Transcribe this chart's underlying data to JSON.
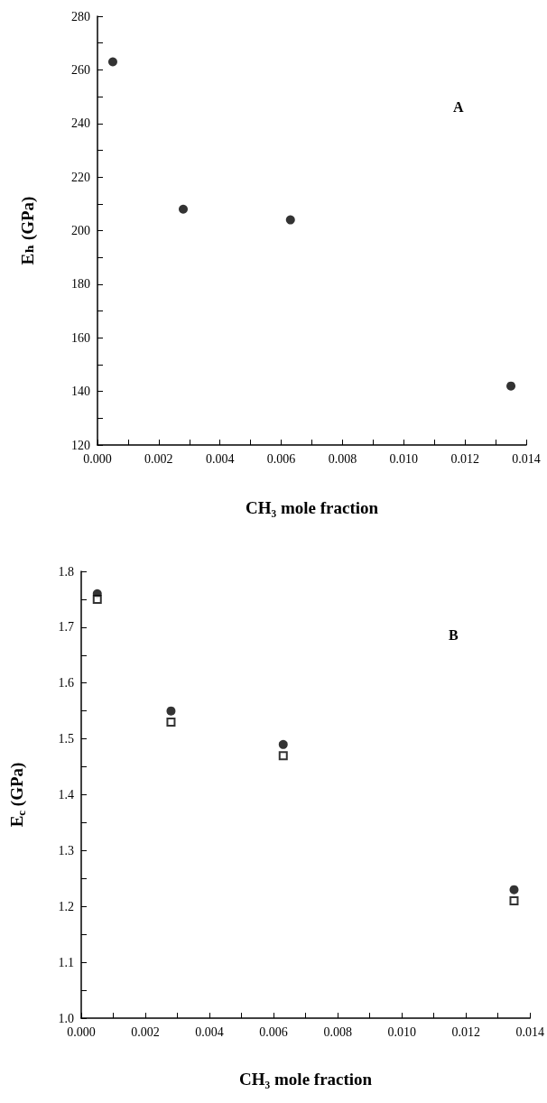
{
  "chart_data": [
    {
      "type": "scatter",
      "xlabel": "CH₃ mole fraction",
      "ylabel": "Eₕ (GPa)",
      "annotations": [
        "A"
      ],
      "x": [
        0.0005,
        0.0028,
        0.0063,
        0.0135
      ],
      "series": [
        {
          "color": "#000000",
          "marker": "circle",
          "values": [
            263,
            208,
            204,
            142
          ]
        }
      ],
      "xlim": [
        0,
        0.014
      ],
      "ylim": [
        120,
        280
      ],
      "xticks": [
        {
          "value": 0,
          "label": "0.000"
        },
        {
          "value": 0.001,
          "label": null
        },
        {
          "value": 0.002,
          "label": "0.002"
        },
        {
          "value": 0.003,
          "label": null
        },
        {
          "value": 0.004,
          "label": "0.004"
        },
        {
          "value": 0.005,
          "label": null
        },
        {
          "value": 0.006,
          "label": "0.006"
        },
        {
          "value": 0.007,
          "label": null
        },
        {
          "value": 0.008,
          "label": "0.008"
        },
        {
          "value": 0.009,
          "label": null
        },
        {
          "value": 0.01,
          "label": "0.010"
        },
        {
          "value": 0.011,
          "label": null
        },
        {
          "value": 0.012,
          "label": "0.012"
        },
        {
          "value": 0.013,
          "label": null
        },
        {
          "value": 0.014,
          "label": "0.014"
        }
      ],
      "yticks": [
        120,
        {
          "value": 130,
          "label": null
        },
        140,
        {
          "value": 150,
          "label": null
        },
        160,
        {
          "value": 170,
          "label": null
        },
        180,
        {
          "value": 190,
          "label": null
        },
        200,
        {
          "value": 210,
          "label": null
        },
        220,
        {
          "value": 230,
          "label": null
        },
        240,
        {
          "value": 250,
          "label": null
        },
        260,
        {
          "value": 270,
          "label": null
        },
        280
      ],
      "grid": false
    },
    {
      "type": "scatter",
      "xlabel": "CH₃ mole fraction",
      "ylabel": "E$_{c}$ (GPa)",
      "annotations": [
        "B"
      ],
      "x": [
        0.0005,
        0.0028,
        0.0063,
        0.0135
      ],
      "series": [
        {
          "color": "#000000",
          "marker": "circle",
          "values": [
            1.76,
            1.55,
            1.49,
            1.23
          ]
        },
        {
          "color": "#000000",
          "marker": "square",
          "values": [
            1.75,
            1.53,
            1.47,
            1.21
          ]
        }
      ],
      "xlim": [
        0,
        0.014
      ],
      "ylim": [
        1.0,
        1.8
      ],
      "xticks": [
        {
          "value": 0,
          "label": "0.000"
        },
        {
          "value": 0.001,
          "label": null
        },
        {
          "value": 0.002,
          "label": "0.002"
        },
        {
          "value": 0.003,
          "label": null
        },
        {
          "value": 0.004,
          "label": "0.004"
        },
        {
          "value": 0.005,
          "label": null
        },
        {
          "value": 0.006,
          "label": "0.006"
        },
        {
          "value": 0.007,
          "label": null
        },
        {
          "value": 0.008,
          "label": "0.008"
        },
        {
          "value": 0.009,
          "label": null
        },
        {
          "value": 0.01,
          "label": "0.010"
        },
        {
          "value": 0.011,
          "label": null
        },
        {
          "value": 0.012,
          "label": "0.012"
        },
        {
          "value": 0.013,
          "label": null
        },
        {
          "value": 0.014,
          "label": "0.014"
        }
      ],
      "yticks": [
        {
          "value": 1.0,
          "label": "1.0"
        },
        {
          "value": 1.05,
          "label": null
        },
        1.1,
        {
          "value": 1.15,
          "label": null
        },
        1.2,
        {
          "value": 1.25,
          "label": null
        },
        1.3,
        {
          "value": 1.35,
          "label": null
        },
        1.4,
        {
          "value": 1.45,
          "label": null
        },
        1.5,
        {
          "value": 1.55,
          "label": null
        },
        1.6,
        {
          "value": 1.65,
          "label": null
        },
        1.7,
        {
          "value": 1.75,
          "label": null
        },
        1.8
      ],
      "grid": false
    }
  ]
}
